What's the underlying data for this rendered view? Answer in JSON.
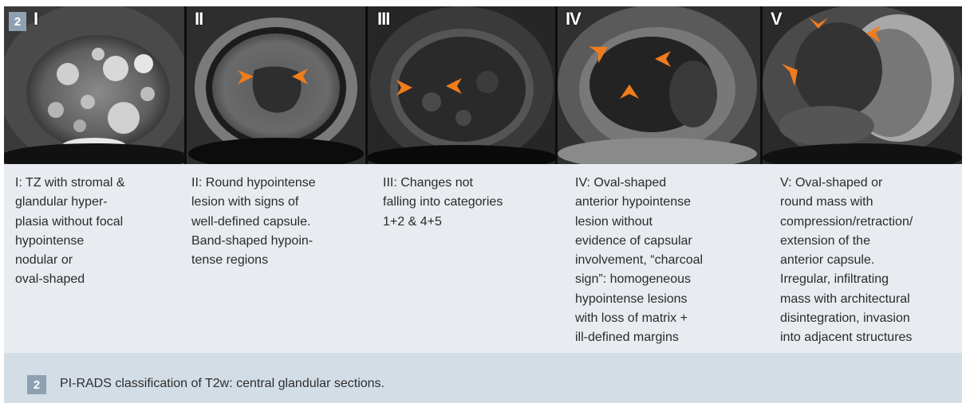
{
  "figure_number": "2",
  "panels": [
    {
      "label": "I",
      "description": "I: TZ with stromal &\nglandular hyper-\nplasia without focal\nhypointense\nnodular or\noval-shaped"
    },
    {
      "label": "II",
      "description": "II: Round hypointense\nlesion with signs of\nwell-defined capsule.\nBand-shaped hypoin-\ntense regions"
    },
    {
      "label": "III",
      "description": "III: Changes not\nfalling into categories\n1+2 & 4+5"
    },
    {
      "label": "IV",
      "description": "IV: Oval-shaped\nanterior hypointense\nlesion without\nevidence of capsular\ninvolvement, “charcoal\nsign”: homogeneous\nhypointense lesions\nwith loss of matrix +\nill-defined margins"
    },
    {
      "label": "V",
      "description": "V: Oval-shaped or\nround mass with\ncompression/retraction/\nextension of the\nanterior capsule.\nIrregular, infiltrating\nmass with architectural\ndisintegration, invasion\ninto adjacent structures"
    }
  ],
  "caption": {
    "number": "2",
    "text": "PI-RADS classification of T2w: central glandular sections."
  },
  "colors": {
    "arrow": "#f07c1c",
    "badge": "#8ea1b3",
    "description_bg": "#e8ecf0",
    "caption_bg": "#d3dde5"
  }
}
